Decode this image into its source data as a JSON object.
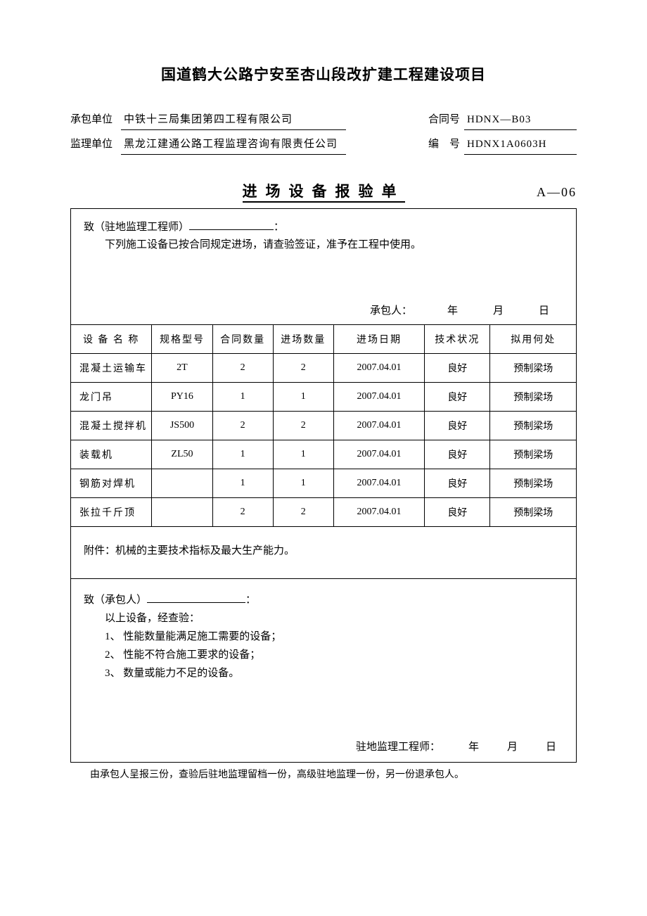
{
  "title": "国道鹤大公路宁安至杏山段改扩建工程建设项目",
  "header": {
    "contractor_label": "承包单位",
    "contractor_value": "中铁十三局集团第四工程有限公司",
    "contract_no_label": "合同号",
    "contract_no_value": "HDNX—B03",
    "supervisor_label": "监理单位",
    "supervisor_value": "黑龙江建通公路工程监理咨询有限责任公司",
    "serial_label": "编　号",
    "serial_value": "HDNX1A0603H"
  },
  "subtitle": "进场设备报验单",
  "form_code": "A—06",
  "top": {
    "to_prefix": "致（驻地监理工程师）",
    "to_suffix": "：",
    "body": "下列施工设备已按合同规定进场，请查验签证，准予在工程中使用。",
    "sign_label": "承包人：",
    "year": "年",
    "month": "月",
    "day": "日"
  },
  "table": {
    "headers": {
      "name": "设 备 名 称",
      "spec": "规格型号",
      "contract_qty": "合同数量",
      "arrive_qty": "进场数量",
      "arrive_date": "进场日期",
      "tech": "技术状况",
      "usage": "拟用何处"
    },
    "rows": [
      {
        "name": "混凝土运输车",
        "spec": "2T",
        "cqty": "2",
        "aqty": "2",
        "date": "2007.04.01",
        "tech": "良好",
        "usage": "预制梁场"
      },
      {
        "name": "龙门吊",
        "spec": "PY16",
        "cqty": "1",
        "aqty": "1",
        "date": "2007.04.01",
        "tech": "良好",
        "usage": "预制梁场"
      },
      {
        "name": "混凝土搅拌机",
        "spec": "JS500",
        "cqty": "2",
        "aqty": "2",
        "date": "2007.04.01",
        "tech": "良好",
        "usage": "预制梁场"
      },
      {
        "name": "装载机",
        "spec": "ZL50",
        "cqty": "1",
        "aqty": "1",
        "date": "2007.04.01",
        "tech": "良好",
        "usage": "预制梁场"
      },
      {
        "name": "钢筋对焊机",
        "spec": "",
        "cqty": "1",
        "aqty": "1",
        "date": "2007.04.01",
        "tech": "良好",
        "usage": "预制梁场"
      },
      {
        "name": "张拉千斤顶",
        "spec": "",
        "cqty": "2",
        "aqty": "2",
        "date": "2007.04.01",
        "tech": "良好",
        "usage": "预制梁场"
      }
    ]
  },
  "attachment": "附件：机械的主要技术指标及最大生产能力。",
  "bottom": {
    "to_prefix": "致（承包人）",
    "to_suffix": "：",
    "line0": "以上设备，经查验：",
    "line1": "1、 性能数量能满足施工需要的设备；",
    "line2": "2、 性能不符合施工要求的设备；",
    "line3": "3、 数量或能力不足的设备。",
    "sign_label": "驻地监理工程师：",
    "year": "年",
    "month": "月",
    "day": "日"
  },
  "footer": "由承包人呈报三份，查验后驻地监理留档一份，高级驻地监理一份，另一份退承包人。"
}
